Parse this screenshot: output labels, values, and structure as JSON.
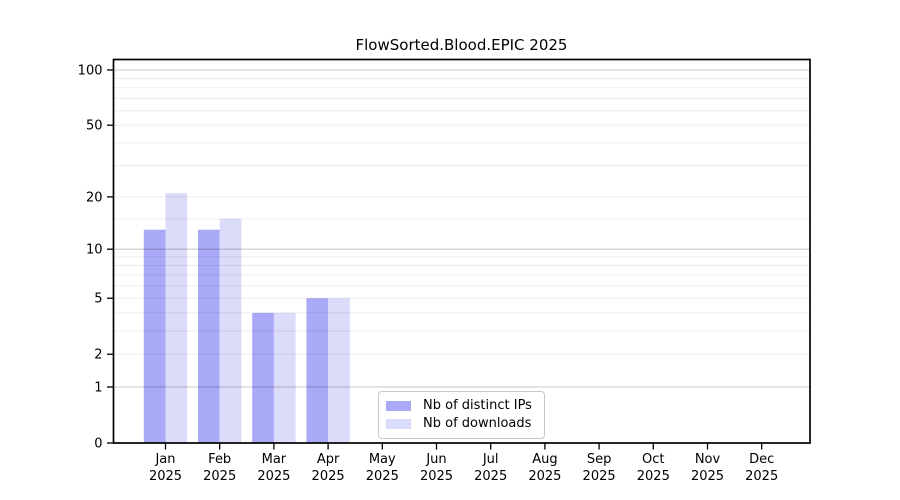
{
  "chart_data": {
    "type": "bar",
    "title": "FlowSorted.Blood.EPIC 2025",
    "categories": [
      "Jan 2025",
      "Feb 2025",
      "Mar 2025",
      "Apr 2025",
      "May 2025",
      "Jun 2025",
      "Jul 2025",
      "Aug 2025",
      "Sep 2025",
      "Oct 2025",
      "Nov 2025",
      "Dec 2025"
    ],
    "x_tick_labels": {
      "line1": [
        "Jan",
        "Feb",
        "Mar",
        "Apr",
        "May",
        "Jun",
        "Jul",
        "Aug",
        "Sep",
        "Oct",
        "Nov",
        "Dec"
      ],
      "line2": "2025"
    },
    "series": [
      {
        "name": "Nb of distinct IPs",
        "slug": "distinct-ips",
        "color": "#a9a9f8",
        "values": [
          13,
          13,
          4,
          5,
          0,
          0,
          0,
          0,
          0,
          0,
          0,
          0
        ]
      },
      {
        "name": "Nb of downloads",
        "slug": "downloads",
        "color": "#dbdbfa",
        "values": [
          21,
          15,
          4,
          5,
          0,
          0,
          0,
          0,
          0,
          0,
          0,
          0
        ]
      }
    ],
    "xlabel": "",
    "ylabel": "",
    "ylim": [
      0,
      100
    ],
    "y_scale": "log10(value+1)",
    "y_ticks": [
      0,
      1,
      2,
      5,
      10,
      20,
      50,
      100
    ],
    "y_major_gridlines": [
      1,
      10,
      100
    ],
    "y_minor_gridlines": [
      2,
      3,
      4,
      5,
      6,
      7,
      8,
      9,
      15,
      20,
      30,
      40,
      50,
      60,
      70,
      80,
      90
    ],
    "grid": true,
    "legend_position": "inside lower center-left",
    "colors": {
      "major_grid": "#c9c9c9",
      "minor_grid": "#ececec",
      "axis": "#000000",
      "background": "#ffffff"
    }
  }
}
